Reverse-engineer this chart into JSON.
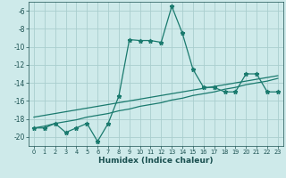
{
  "x": [
    0,
    1,
    2,
    3,
    4,
    5,
    6,
    7,
    8,
    9,
    10,
    11,
    12,
    13,
    14,
    15,
    16,
    17,
    18,
    19,
    20,
    21,
    22,
    23
  ],
  "y_main": [
    -19,
    -19,
    -18.5,
    -19.5,
    -19,
    -18.5,
    -20.5,
    -18.5,
    -15.5,
    -9.2,
    -9.3,
    -9.3,
    -9.5,
    -5.5,
    -8.5,
    -12.5,
    -14.5,
    -14.5,
    -15,
    -15,
    -13,
    -13,
    -15,
    -15
  ],
  "y_trend1": [
    -19.0,
    -18.8,
    -18.5,
    -18.3,
    -18.1,
    -17.8,
    -17.6,
    -17.4,
    -17.1,
    -16.9,
    -16.6,
    -16.4,
    -16.2,
    -15.9,
    -15.7,
    -15.4,
    -15.2,
    -15.0,
    -14.7,
    -14.5,
    -14.2,
    -14.0,
    -13.8,
    -13.5
  ],
  "y_trend2": [
    -17.8,
    -17.6,
    -17.4,
    -17.2,
    -17.0,
    -16.8,
    -16.6,
    -16.4,
    -16.2,
    -16.0,
    -15.8,
    -15.6,
    -15.4,
    -15.2,
    -15.0,
    -14.8,
    -14.6,
    -14.4,
    -14.2,
    -14.0,
    -13.8,
    -13.6,
    -13.4,
    -13.2
  ],
  "xlabel": "Humidex (Indice chaleur)",
  "xlim": [
    -0.5,
    23.5
  ],
  "ylim": [
    -21,
    -5
  ],
  "bg_color": "#ceeaea",
  "line_color": "#1a7a6e",
  "grid_color": "#aacece",
  "tick_label_color": "#1a5050",
  "yticks": [
    -20,
    -18,
    -16,
    -14,
    -12,
    -10,
    -8,
    -6
  ],
  "xticks": [
    0,
    1,
    2,
    3,
    4,
    5,
    6,
    7,
    8,
    9,
    10,
    11,
    12,
    13,
    14,
    15,
    16,
    17,
    18,
    19,
    20,
    21,
    22,
    23
  ]
}
